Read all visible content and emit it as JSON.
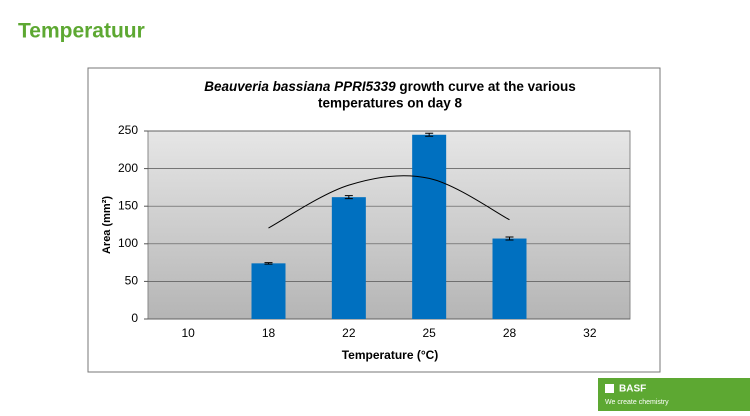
{
  "header": {
    "title": "Temperatuur"
  },
  "chart_data": {
    "type": "bar",
    "title_italic": "Beauveria bassiana PPRI5339",
    "title_rest": " growth curve at the various",
    "title_line2": "temperatures on day 8",
    "x_label": "Temperature (°C)",
    "y_label": "Area (mm²)",
    "categories": [
      "10",
      "18",
      "22",
      "25",
      "28",
      "32"
    ],
    "values": [
      0,
      74,
      162,
      245,
      107,
      0
    ],
    "errors": [
      null,
      1,
      2,
      2,
      2,
      null
    ],
    "color": "#0070c0",
    "trendline": {
      "values": [
        null,
        121,
        178,
        187,
        132,
        null
      ]
    },
    "ylim": [
      0,
      250
    ],
    "yticks": [
      0,
      50,
      100,
      150,
      200,
      250
    ],
    "grid": true
  },
  "logo": {
    "name": "BASF",
    "tagline": "We create chemistry"
  }
}
